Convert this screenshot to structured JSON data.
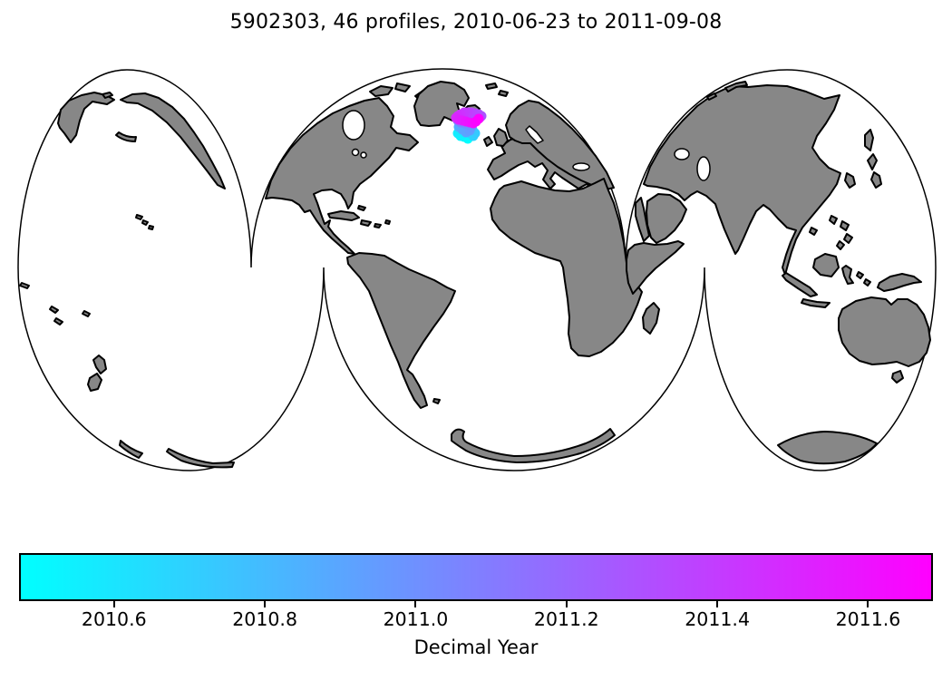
{
  "title": "5902303, 46 profiles, 2010-06-23 to 2011-09-08",
  "map": {
    "land_color": "#878787",
    "ocean_color": "#ffffff",
    "outline_color": "#000000"
  },
  "chart_data": {
    "type": "scatter",
    "description": "Float profile positions plotted on an interrupted world map, colored by decimal year",
    "float_id": "5902303",
    "n_profiles": 46,
    "date_start": "2010-06-23",
    "date_end": "2011-09-08",
    "colorbar": {
      "label": "Decimal Year",
      "cmap": [
        "#00ffff",
        "#ff00ff"
      ],
      "vmin": 2010.474,
      "vmax": 2011.686,
      "ticks": [
        2010.6,
        2010.8,
        2011.0,
        2011.2,
        2011.4,
        2011.6
      ],
      "tick_labels": [
        "2010.6",
        "2010.8",
        "2011.0",
        "2011.2",
        "2011.4",
        "2011.6"
      ]
    },
    "point_radius_px": 5.5,
    "points_format": [
      "x_px",
      "y_px",
      "decimal_year"
    ],
    "points": [
      [
        516,
        153,
        2010.477
      ],
      [
        512,
        151,
        2010.504
      ],
      [
        508,
        150,
        2010.531
      ],
      [
        505,
        147,
        2010.558
      ],
      [
        507,
        144,
        2010.585
      ],
      [
        511,
        142,
        2010.612
      ],
      [
        515,
        144,
        2010.638
      ],
      [
        519,
        147,
        2010.665
      ],
      [
        522,
        150,
        2010.692
      ],
      [
        524,
        147,
        2010.719
      ],
      [
        521,
        143,
        2010.746
      ],
      [
        517,
        141,
        2010.773
      ],
      [
        513,
        139,
        2010.8
      ],
      [
        509,
        138,
        2010.827
      ],
      [
        506,
        140,
        2010.854
      ],
      [
        510,
        143,
        2010.881
      ],
      [
        514,
        146,
        2010.908
      ],
      [
        518,
        144,
        2010.934
      ],
      [
        520,
        140,
        2010.961
      ],
      [
        516,
        137,
        2010.988
      ],
      [
        512,
        136,
        2011.015
      ],
      [
        508,
        135,
        2011.042
      ],
      [
        505,
        133,
        2011.069
      ],
      [
        507,
        130,
        2011.096
      ],
      [
        511,
        128,
        2011.123
      ],
      [
        515,
        130,
        2011.15
      ],
      [
        519,
        132,
        2011.177
      ],
      [
        523,
        134,
        2011.204
      ],
      [
        526,
        132,
        2011.231
      ],
      [
        529,
        130,
        2011.257
      ],
      [
        531,
        128,
        2011.284
      ],
      [
        528,
        126,
        2011.311
      ],
      [
        524,
        125,
        2011.338
      ],
      [
        520,
        124,
        2011.365
      ],
      [
        516,
        124,
        2011.392
      ],
      [
        512,
        124,
        2011.419
      ],
      [
        508,
        126,
        2011.446
      ],
      [
        505,
        128,
        2011.473
      ],
      [
        503,
        130,
        2011.5
      ],
      [
        506,
        132,
        2011.527
      ],
      [
        510,
        133,
        2011.554
      ],
      [
        514,
        134,
        2011.581
      ],
      [
        518,
        135,
        2011.607
      ],
      [
        522,
        136,
        2011.634
      ],
      [
        525,
        134,
        2011.661
      ],
      [
        528,
        131,
        2011.688
      ]
    ]
  }
}
